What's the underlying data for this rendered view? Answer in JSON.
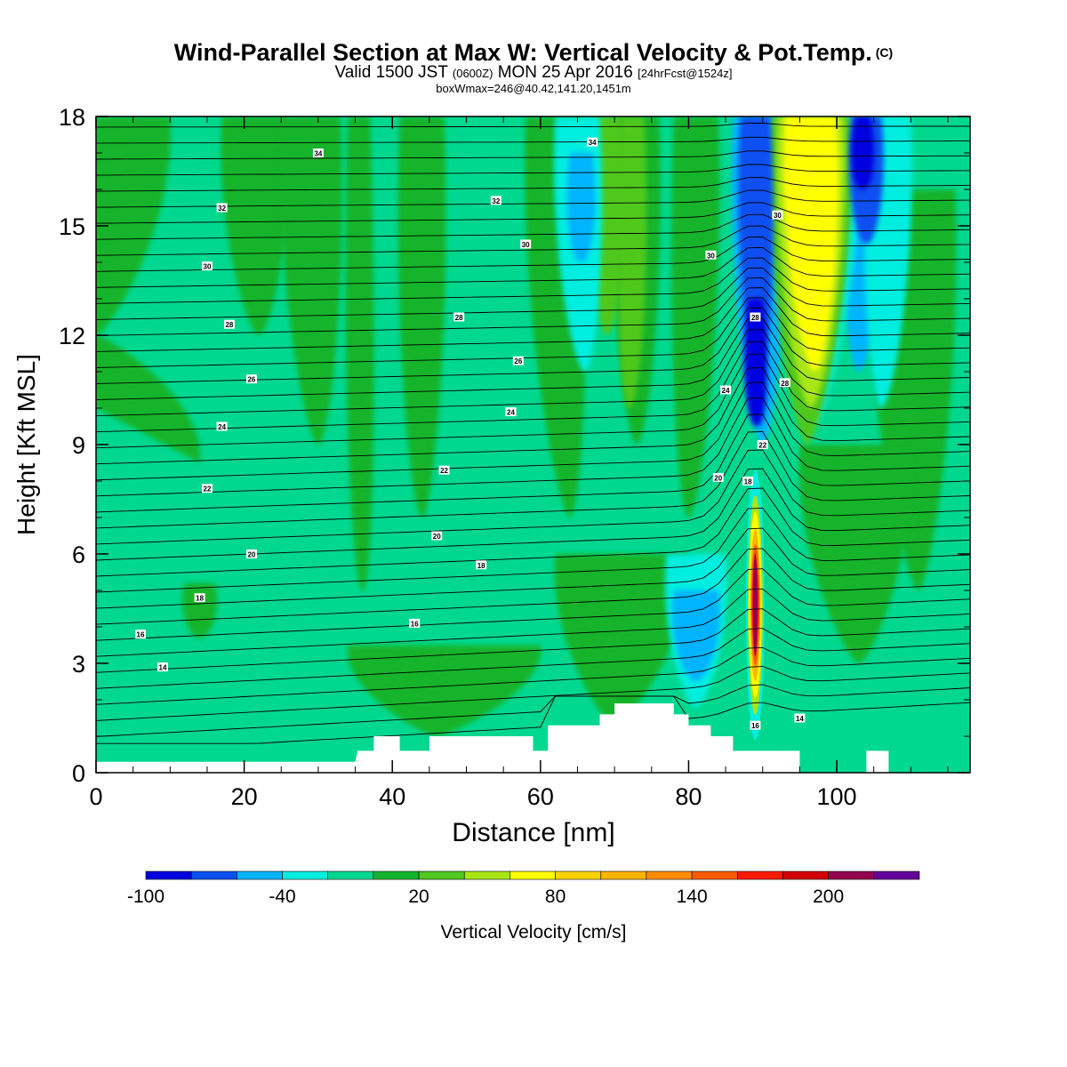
{
  "header": {
    "title": "Wind-Parallel Section at Max W: Vertical Velocity & Pot.Temp.",
    "title_tag": "(C)",
    "valid_prefix": "Valid 1500 JST",
    "valid_utc": "(0600Z)",
    "valid_date": "MON 25 Apr 2016",
    "valid_fcst": "[24hrFcst@1524z]",
    "box_info": "boxWmax=246@40.42,141.20,1451m"
  },
  "chart_data": {
    "type": "heatmap",
    "xlabel": "Distance [nm]",
    "ylabel": "Height [Kft MSL]",
    "xlim": [
      0,
      118
    ],
    "ylim": [
      0,
      18
    ],
    "x_ticks": [
      0,
      20,
      40,
      60,
      80,
      100
    ],
    "y_ticks": [
      0,
      3,
      6,
      9,
      12,
      15,
      18
    ],
    "colorbar": {
      "label": "Vertical Velocity [cm/s]",
      "tick_labels": [
        "-100",
        "-40",
        "20",
        "80",
        "140",
        "200"
      ],
      "tick_values": [
        -100,
        -40,
        20,
        80,
        140,
        200
      ],
      "boundaries": [
        -100,
        -80,
        -60,
        -40,
        -20,
        0,
        20,
        40,
        60,
        80,
        100,
        120,
        140,
        160,
        180,
        200,
        220,
        240
      ],
      "colors": [
        "#0000e0",
        "#0a50f0",
        "#00b4ff",
        "#00eee0",
        "#00d890",
        "#14b42c",
        "#50c81e",
        "#a8e614",
        "#ffff00",
        "#ffd200",
        "#ffb400",
        "#ff8c00",
        "#ff5a00",
        "#ff1a00",
        "#d20000",
        "#960050",
        "#64009a"
      ]
    },
    "features": [
      {
        "name": "updraft",
        "x": 89,
        "z": 4.5,
        "w": 240
      },
      {
        "name": "upper updraft",
        "x": 95,
        "z": 14,
        "w": 80
      },
      {
        "name": "upper downdraft",
        "x": 89,
        "z": 12,
        "w": -100
      },
      {
        "name": "upper downdraft east",
        "x": 103,
        "z": 16,
        "w": -80
      },
      {
        "name": "low-level downdraft",
        "x": 81,
        "z": 3.5,
        "w": -40
      }
    ],
    "terrain_kft": [
      [
        0,
        0.3
      ],
      [
        35,
        0.3
      ],
      [
        35.3,
        0.6
      ],
      [
        37.5,
        0.6
      ],
      [
        37.5,
        1
      ],
      [
        41,
        1
      ],
      [
        41,
        0.6
      ],
      [
        45,
        0.6
      ],
      [
        45,
        1
      ],
      [
        59,
        1
      ],
      [
        59,
        0.6
      ],
      [
        61,
        0.6
      ],
      [
        61,
        1.3
      ],
      [
        68,
        1.3
      ],
      [
        68,
        1.6
      ],
      [
        70,
        1.6
      ],
      [
        70,
        1.9
      ],
      [
        78,
        1.9
      ],
      [
        78,
        1.6
      ],
      [
        80,
        1.6
      ],
      [
        80,
        1.3
      ],
      [
        83,
        1.3
      ],
      [
        83,
        1
      ],
      [
        86,
        1
      ],
      [
        86,
        0.6
      ],
      [
        95,
        0.6
      ],
      [
        95,
        0
      ],
      [
        104,
        0
      ],
      [
        104,
        0.6
      ],
      [
        107,
        0.6
      ],
      [
        107,
        0
      ],
      [
        118,
        0
      ]
    ],
    "theta_contour_labels": [
      {
        "text": "34",
        "x": 30,
        "z": 17.0
      },
      {
        "text": "34",
        "x": 67,
        "z": 17.3
      },
      {
        "text": "32",
        "x": 17,
        "z": 15.5
      },
      {
        "text": "32",
        "x": 54,
        "z": 15.7
      },
      {
        "text": "30",
        "x": 15,
        "z": 13.9
      },
      {
        "text": "30",
        "x": 58,
        "z": 14.5
      },
      {
        "text": "30",
        "x": 83,
        "z": 14.2
      },
      {
        "text": "30",
        "x": 92,
        "z": 15.3
      },
      {
        "text": "28",
        "x": 18,
        "z": 12.3
      },
      {
        "text": "28",
        "x": 49,
        "z": 12.5
      },
      {
        "text": "28",
        "x": 89,
        "z": 12.5
      },
      {
        "text": "28",
        "x": 93,
        "z": 10.7
      },
      {
        "text": "26",
        "x": 21,
        "z": 10.8
      },
      {
        "text": "26",
        "x": 57,
        "z": 11.3
      },
      {
        "text": "24",
        "x": 17,
        "z": 9.5
      },
      {
        "text": "24",
        "x": 56,
        "z": 9.9
      },
      {
        "text": "24",
        "x": 85,
        "z": 10.5
      },
      {
        "text": "22",
        "x": 90,
        "z": 9.0
      },
      {
        "text": "22",
        "x": 15,
        "z": 7.8
      },
      {
        "text": "22",
        "x": 47,
        "z": 8.3
      },
      {
        "text": "20",
        "x": 21,
        "z": 6.0
      },
      {
        "text": "20",
        "x": 46,
        "z": 6.5
      },
      {
        "text": "20",
        "x": 84,
        "z": 8.1
      },
      {
        "text": "18",
        "x": 88,
        "z": 8.0
      },
      {
        "text": "18",
        "x": 14,
        "z": 4.8
      },
      {
        "text": "18",
        "x": 52,
        "z": 5.7
      },
      {
        "text": "16",
        "x": 6,
        "z": 3.8
      },
      {
        "text": "16",
        "x": 43,
        "z": 4.1
      },
      {
        "text": "16",
        "x": 89,
        "z": 1.3
      },
      {
        "text": "14",
        "x": 9,
        "z": 2.9
      },
      {
        "text": "14",
        "x": 95,
        "z": 1.5
      }
    ]
  }
}
